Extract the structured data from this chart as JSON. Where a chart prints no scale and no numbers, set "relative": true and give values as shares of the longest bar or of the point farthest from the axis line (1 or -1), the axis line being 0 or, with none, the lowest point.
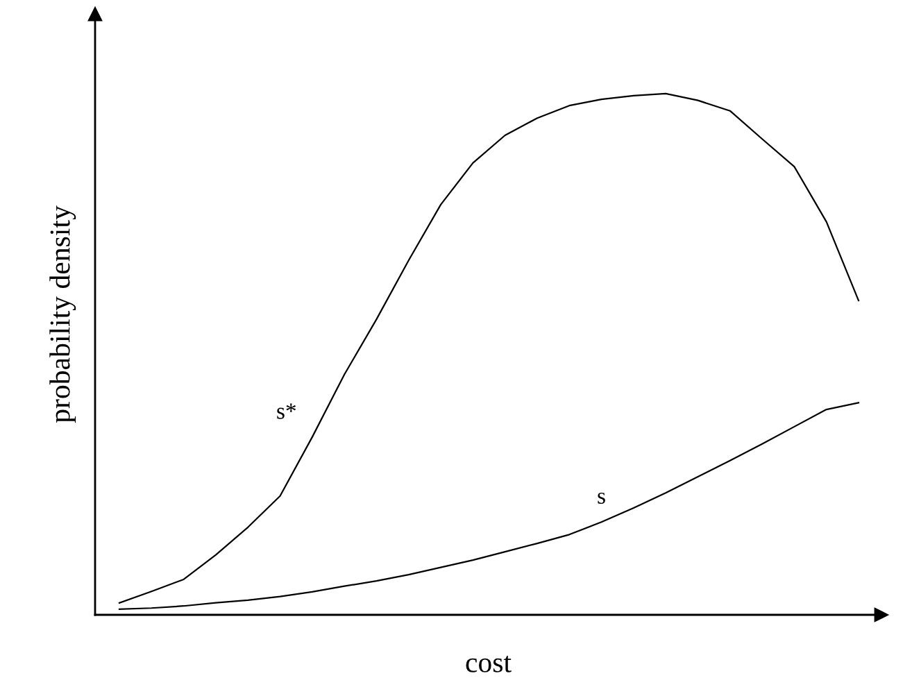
{
  "chart_data": {
    "type": "line",
    "relative": true,
    "xlabel": "cost",
    "ylabel": "probability density",
    "categories": [
      null,
      null,
      null,
      null,
      null,
      null,
      null,
      null,
      null,
      null,
      null,
      null,
      null,
      null,
      null,
      null,
      null,
      null,
      null,
      null,
      null,
      null,
      null,
      null
    ],
    "series": [
      {
        "name": "s*",
        "color": "#000000",
        "values": [
          0.023,
          0.045,
          0.068,
          0.115,
          0.168,
          0.228,
          0.341,
          0.461,
          0.567,
          0.68,
          0.787,
          0.867,
          0.92,
          0.953,
          0.977,
          0.989,
          0.996,
          1.0,
          0.987,
          0.967,
          0.913,
          0.86,
          0.754,
          0.603
        ]
      },
      {
        "name": "s",
        "color": "#000000",
        "values": [
          0.011,
          0.013,
          0.017,
          0.023,
          0.028,
          0.035,
          0.044,
          0.055,
          0.065,
          0.077,
          0.091,
          0.105,
          0.121,
          0.137,
          0.154,
          0.178,
          0.205,
          0.234,
          0.265,
          0.296,
          0.328,
          0.361,
          0.394,
          0.407
        ]
      }
    ],
    "grid": false,
    "legend": false,
    "marker": "none",
    "line_style": "solid"
  }
}
